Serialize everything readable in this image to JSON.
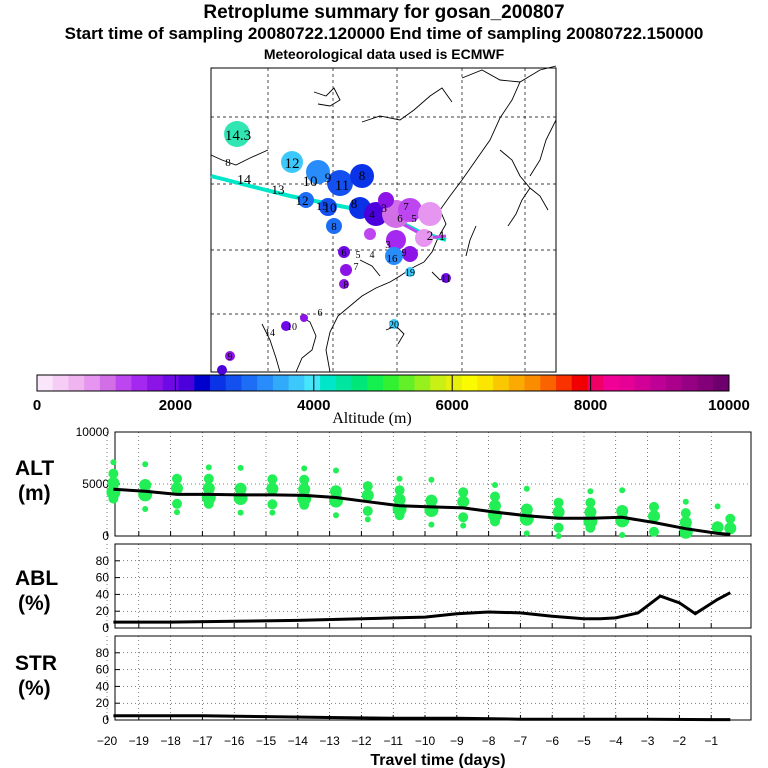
{
  "title": "Retroplume summary for gosan_200807",
  "subtitle": "Start time of sampling 20080722.120000     End time of sampling 20080722.150000",
  "met_note": "Meteorological data used is ECMWF",
  "map": {
    "labels": [
      {
        "text": "14.3"
      },
      {
        "text": "8"
      },
      {
        "text": "12"
      },
      {
        "text": "14"
      },
      {
        "text": "10"
      },
      {
        "text": "9"
      },
      {
        "text": "11"
      },
      {
        "text": "8"
      },
      {
        "text": "13"
      },
      {
        "text": "12"
      },
      {
        "text": "15"
      },
      {
        "text": "10"
      },
      {
        "text": "8"
      },
      {
        "text": "3"
      },
      {
        "text": "4"
      },
      {
        "text": "6"
      },
      {
        "text": "5"
      },
      {
        "text": "7"
      },
      {
        "text": "2"
      },
      {
        "text": "1"
      },
      {
        "text": "8"
      },
      {
        "text": "6"
      },
      {
        "text": "5"
      },
      {
        "text": "4"
      },
      {
        "text": "3"
      },
      {
        "text": "9"
      },
      {
        "text": "16"
      },
      {
        "text": "7"
      },
      {
        "text": "8"
      },
      {
        "text": "19"
      },
      {
        "text": "11"
      },
      {
        "text": "6"
      },
      {
        "text": "14"
      },
      {
        "text": "10"
      },
      {
        "text": "20"
      },
      {
        "text": "9"
      }
    ]
  },
  "colorbar": {
    "colors": [
      "#fae6fa",
      "#f5cdf5",
      "#f0b4f0",
      "#e696f0",
      "#d26ee6",
      "#be46f0",
      "#a528f0",
      "#8c14e6",
      "#6e0ae6",
      "#4b00dc",
      "#0000cd",
      "#0a32e6",
      "#1450f0",
      "#1e6ef5",
      "#288cfa",
      "#32aafa",
      "#3cc8fa",
      "#46e6fa",
      "#00e6c8",
      "#00e6a0",
      "#00e678",
      "#14f050",
      "#32f032",
      "#64f028",
      "#96f01e",
      "#c8f014",
      "#e6f00a",
      "#fafa00",
      "#fae600",
      "#fac800",
      "#faaa00",
      "#fa8c00",
      "#fa6400",
      "#fa3200",
      "#f00000",
      "#f00064",
      "#f00096",
      "#e60096",
      "#d20096",
      "#be0096",
      "#aa008c",
      "#960082",
      "#820078",
      "#6e006e"
    ],
    "tick_labels": [
      "0",
      "2000",
      "4000",
      "6000",
      "8000",
      "10000"
    ],
    "tick_values": [
      0,
      2000,
      4000,
      6000,
      8000,
      10000
    ],
    "range": [
      0,
      10000
    ],
    "label": "Altitude  (m)"
  },
  "chart_data": [
    {
      "type": "scatter",
      "name": "ALT",
      "ylabel": "ALT\n(m)",
      "ylim": [
        0,
        10000
      ],
      "yticks": [
        0,
        5000,
        10000
      ],
      "xlim": [
        -20,
        0
      ],
      "x": [
        -19.8,
        -18.8,
        -17.8,
        -16.8,
        -15.8,
        -14.8,
        -13.8,
        -12.8,
        -11.8,
        -10.8,
        -9.8,
        -8.8,
        -7.8,
        -6.8,
        -5.8,
        -4.8,
        -3.8,
        -2.8,
        -1.8,
        -0.8,
        -0.4
      ],
      "values": [
        4500,
        4300,
        4000,
        4000,
        3950,
        3950,
        3900,
        3700,
        3300,
        2900,
        2800,
        2700,
        2300,
        1950,
        1700,
        1700,
        1800,
        1300,
        700,
        250,
        150
      ],
      "marker_color": "#22ee55"
    },
    {
      "type": "line",
      "name": "ABL",
      "ylabel": "ABL\n(%)",
      "ylim": [
        0,
        100
      ],
      "yticks": [
        0,
        20,
        40,
        60,
        80
      ],
      "xlim": [
        -20,
        0
      ],
      "x": [
        -19.8,
        -18,
        -16,
        -14,
        -12,
        -11,
        -10,
        -9,
        -8,
        -7,
        -6,
        -5,
        -4.5,
        -4,
        -3.3,
        -2.6,
        -2,
        -1.5,
        -0.8,
        -0.4
      ],
      "values": [
        7,
        7,
        8,
        9,
        11,
        12,
        13,
        17,
        19,
        18,
        14,
        11,
        11,
        12,
        18,
        38,
        30,
        17,
        34,
        42
      ]
    },
    {
      "type": "line",
      "name": "STR",
      "ylabel": "STR\n(%)",
      "ylim": [
        0,
        100
      ],
      "yticks": [
        0,
        20,
        40,
        60,
        80
      ],
      "xlim": [
        -20,
        0
      ],
      "x": [
        -19.8,
        -17,
        -15,
        -13,
        -11,
        -9,
        -7,
        -5,
        -3,
        -1,
        -0.4
      ],
      "values": [
        5,
        5,
        4,
        3,
        2,
        2,
        1,
        1,
        1,
        0.5,
        0.5
      ]
    }
  ],
  "xaxis": {
    "label": "Travel time (days)",
    "tick_labels": [
      "−20",
      "−19",
      "−18",
      "−17",
      "−16",
      "−15",
      "−14",
      "−13",
      "−12",
      "−11",
      "−10",
      "−9",
      "−8",
      "−7",
      "−6",
      "−5",
      "−4",
      "−3",
      "−2",
      "−1"
    ],
    "tick_values": [
      -20,
      -19,
      -18,
      -17,
      -16,
      -15,
      -14,
      -13,
      -12,
      -11,
      -10,
      -9,
      -8,
      -7,
      -6,
      -5,
      -4,
      -3,
      -2,
      -1
    ]
  },
  "panel_labels": {
    "alt_1": "ALT",
    "alt_2": "(m)",
    "abl_1": "ABL",
    "abl_2": "(%)",
    "str_1": "STR",
    "str_2": "(%)"
  }
}
